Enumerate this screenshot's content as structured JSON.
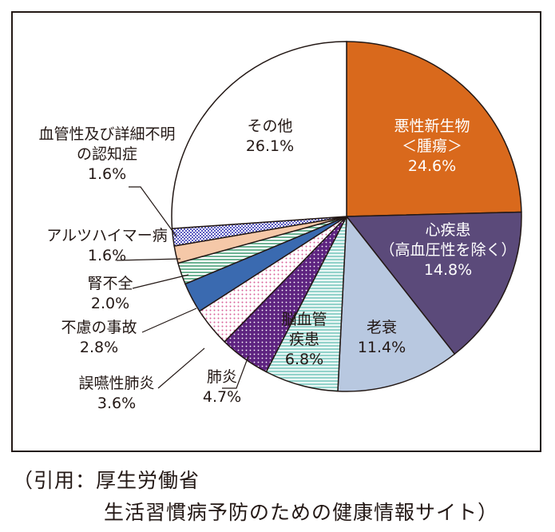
{
  "chart_data": {
    "type": "pie",
    "title": "",
    "slices": [
      {
        "label_lines": [
          "悪性新生物",
          "＜腫瘍＞"
        ],
        "value": 24.6,
        "value_label": "24.6%",
        "color": "#d9691c",
        "pattern": "solid",
        "text_color": "#ffffff"
      },
      {
        "label_lines": [
          "心疾患",
          "（高血圧性を除く）"
        ],
        "value": 14.8,
        "value_label": "14.8%",
        "color": "#5b4a7a",
        "pattern": "solid",
        "text_color": "#ffffff"
      },
      {
        "label_lines": [
          "老衰"
        ],
        "value": 11.4,
        "value_label": "11.4%",
        "color": "#b8c8e0",
        "pattern": "solid",
        "text_color": "#231815"
      },
      {
        "label_lines": [
          "脳血管",
          "疾患"
        ],
        "value": 6.8,
        "value_label": "6.8%",
        "color": "#7fc8c0",
        "pattern": "hlines",
        "text_color": "#231815"
      },
      {
        "label_lines": [
          "肺炎"
        ],
        "value": 4.7,
        "value_label": "4.7%",
        "color": "#6a2a8a",
        "pattern": "dots-dark",
        "text_color": "#231815"
      },
      {
        "label_lines": [
          "誤嚥性肺炎"
        ],
        "value": 3.6,
        "value_label": "3.6%",
        "color": "#e07aa8",
        "pattern": "dots-light",
        "text_color": "#231815"
      },
      {
        "label_lines": [
          "不慮の事故"
        ],
        "value": 2.8,
        "value_label": "2.8%",
        "color": "#3a6ab0",
        "pattern": "solid",
        "text_color": "#231815"
      },
      {
        "label_lines": [
          "腎不全"
        ],
        "value": 2.0,
        "value_label": "2.0%",
        "color": "#5ab08a",
        "pattern": "hlines",
        "text_color": "#231815"
      },
      {
        "label_lines": [
          "アルツハイマー病"
        ],
        "value": 1.6,
        "value_label": "1.6%",
        "color": "#f5c8a8",
        "pattern": "solid",
        "text_color": "#231815"
      },
      {
        "label_lines": [
          "血管性及び詳細不明",
          "の認知症"
        ],
        "value": 1.6,
        "value_label": "1.6%",
        "color": "#6a6ac8",
        "pattern": "grid",
        "text_color": "#231815"
      },
      {
        "label_lines": [
          "その他"
        ],
        "value": 26.1,
        "value_label": "26.1%",
        "color": "#ffffff",
        "pattern": "solid",
        "text_color": "#231815"
      }
    ]
  },
  "citation": {
    "line1": "（引用：厚生労働省",
    "line2": "生活習慣病予防のための健康情報サイト）"
  }
}
